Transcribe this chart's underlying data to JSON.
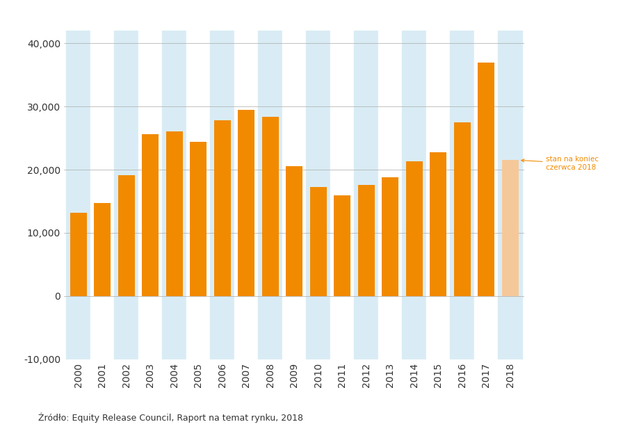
{
  "years": [
    2000,
    2001,
    2002,
    2003,
    2004,
    2005,
    2006,
    2007,
    2008,
    2009,
    2010,
    2011,
    2012,
    2013,
    2014,
    2015,
    2016,
    2017,
    2018
  ],
  "values": [
    13200,
    14700,
    19100,
    25600,
    26100,
    24400,
    27800,
    29500,
    28400,
    20500,
    17300,
    15900,
    17600,
    18800,
    21300,
    22800,
    27500,
    36900,
    21500
  ],
  "bar_colors": [
    "#F28A00",
    "#F28A00",
    "#F28A00",
    "#F28A00",
    "#F28A00",
    "#F28A00",
    "#F28A00",
    "#F28A00",
    "#F28A00",
    "#F28A00",
    "#F28A00",
    "#F28A00",
    "#F28A00",
    "#F28A00",
    "#F28A00",
    "#F28A00",
    "#F28A00",
    "#F28A00",
    "#F5C89A"
  ],
  "bg_colors_even": "#D9ECF5",
  "bg_colors_odd": "#FFFFFF",
  "ylim": [
    -10000,
    42000
  ],
  "yticks": [
    -10000,
    0,
    10000,
    20000,
    30000,
    40000
  ],
  "ytick_labels": [
    "-10,000",
    "0",
    "10,000",
    "20,000",
    "30,000",
    "40,000"
  ],
  "annotation_text": "stan na koniec\nczerwca 2018",
  "annotation_color": "#F28A00",
  "source_text": "Źródło: Equity Release Council, Raport na temat rynku, 2018",
  "grid_color": "#AAAAAA",
  "background_color": "#FFFFFF"
}
